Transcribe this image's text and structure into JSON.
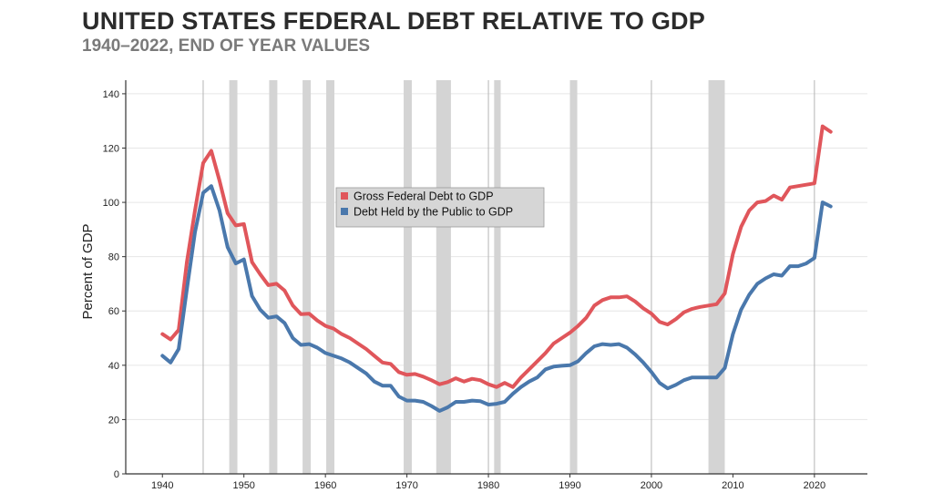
{
  "title": "UNITED STATES FEDERAL DEBT RELATIVE TO GDP",
  "subtitle": "1940–2022, END OF YEAR VALUES",
  "chart_data": {
    "type": "line",
    "title": "UNITED STATES FEDERAL DEBT RELATIVE TO GDP",
    "subtitle": "1940–2022, END OF YEAR VALUES",
    "xlabel": "",
    "ylabel": "Percent of GDP",
    "xlim": [
      1935.5,
      2026.5
    ],
    "ylim": [
      0,
      145
    ],
    "xticks": [
      1940,
      1950,
      1960,
      1970,
      1980,
      1990,
      2000,
      2010,
      2020
    ],
    "yticks": [
      0,
      20,
      40,
      60,
      80,
      100,
      120,
      140
    ],
    "grid": true,
    "legend_position": "center",
    "vertical_reference_lines": [
      1945,
      1980,
      2000,
      2020
    ],
    "recession_shading": [
      [
        1948.2,
        1949.2
      ],
      [
        1953.1,
        1954.1
      ],
      [
        1957.2,
        1958.2
      ],
      [
        1960.1,
        1961.1
      ],
      [
        1969.6,
        1970.6
      ],
      [
        1973.6,
        1975.4
      ],
      [
        1980.7,
        1981.5
      ],
      [
        1990.0,
        1990.9
      ],
      [
        2007.0,
        2009.0
      ]
    ],
    "x": [
      1940,
      1941,
      1942,
      1943,
      1944,
      1945,
      1946,
      1947,
      1948,
      1949,
      1950,
      1951,
      1952,
      1953,
      1954,
      1955,
      1956,
      1957,
      1958,
      1959,
      1960,
      1961,
      1962,
      1963,
      1964,
      1965,
      1966,
      1967,
      1968,
      1969,
      1970,
      1971,
      1972,
      1973,
      1974,
      1975,
      1976,
      1977,
      1978,
      1979,
      1980,
      1981,
      1982,
      1983,
      1984,
      1985,
      1986,
      1987,
      1988,
      1989,
      1990,
      1991,
      1992,
      1993,
      1994,
      1995,
      1996,
      1997,
      1998,
      1999,
      2000,
      2001,
      2002,
      2003,
      2004,
      2005,
      2006,
      2007,
      2008,
      2009,
      2010,
      2011,
      2012,
      2013,
      2014,
      2015,
      2016,
      2017,
      2018,
      2019,
      2020,
      2021,
      2022
    ],
    "series": [
      {
        "name": "Gross Federal Debt to GDP",
        "color": "#e0565b",
        "values": [
          51.5,
          49.5,
          53,
          78,
          97,
          114.5,
          119,
          108,
          96,
          91.5,
          92,
          78,
          73.5,
          69.5,
          70,
          67.5,
          62,
          58.8,
          59,
          56.5,
          54.5,
          53.5,
          51.5,
          50,
          48,
          46,
          43.5,
          41,
          40.5,
          37.5,
          36.5,
          36.8,
          35.8,
          34.5,
          33,
          33.8,
          35.2,
          34,
          35,
          34.5,
          33,
          32,
          33.5,
          32,
          35.5,
          38.5,
          41.5,
          44.5,
          48,
          50,
          52,
          54.5,
          57.5,
          62,
          64,
          65,
          65,
          65.4,
          63.5,
          61,
          59,
          56,
          55,
          57,
          59.5,
          60.8,
          61.5,
          62,
          62.5,
          66.5,
          81,
          91,
          97,
          100,
          100.5,
          102.5,
          101,
          105.5,
          106,
          106.5,
          107,
          128,
          126
        ]
      },
      {
        "name": "Debt Held by the Public to GDP",
        "color": "#4a78ac",
        "values": [
          43.5,
          41,
          46,
          68,
          89,
          103.5,
          106,
          97,
          83.5,
          77.5,
          79,
          65.5,
          60.5,
          57.5,
          58,
          55.5,
          50,
          47.5,
          47.8,
          46.5,
          44.5,
          43.5,
          42.5,
          41,
          39,
          37,
          34,
          32.5,
          32.5,
          28.5,
          27,
          27,
          26.5,
          25,
          23.2,
          24.5,
          26.5,
          26.5,
          27,
          26.8,
          25.5,
          25.8,
          26.5,
          29.5,
          32,
          34,
          35.5,
          38.5,
          39.5,
          39.8,
          40,
          41.5,
          44.5,
          47,
          47.8,
          47.5,
          47.8,
          46.5,
          44,
          41,
          37.5,
          33.5,
          31.5,
          32.8,
          34.5,
          35.5,
          35.5,
          35.5,
          35.5,
          39,
          51.5,
          60.5,
          66,
          70,
          72,
          73.5,
          73,
          76.5,
          76.5,
          77.5,
          79.5,
          100,
          98.5
        ]
      }
    ]
  }
}
